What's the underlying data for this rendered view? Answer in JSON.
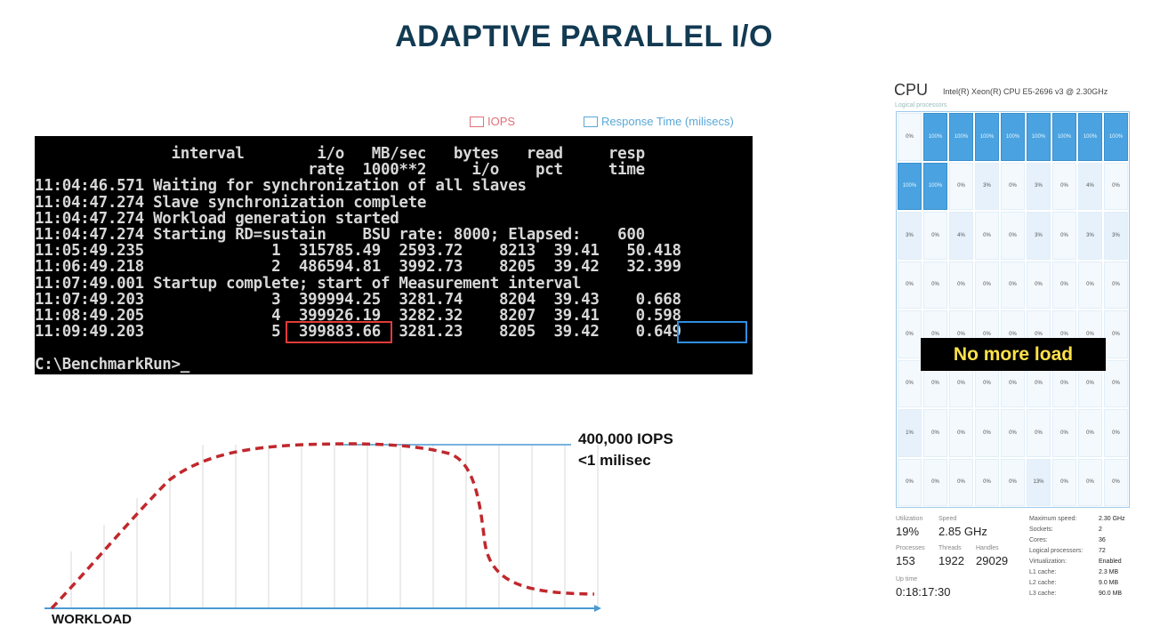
{
  "title": "ADAPTIVE PARALLEL I/O",
  "legend": {
    "iops": "IOPS",
    "response_time": "Response Time (milisecs)"
  },
  "console": {
    "lines": [
      "               interval        i/o   MB/sec   bytes   read     resp",
      "                              rate  1000**2     i/o    pct     time",
      "11:04:46.571 Waiting for synchronization of all slaves",
      "11:04:47.274 Slave synchronization complete",
      "11:04:47.274 Workload generation started",
      "11:04:47.274 Starting RD=sustain    BSU rate: 8000; Elapsed:    600",
      "11:05:49.235              1  315785.49  2593.72    8213  39.41   50.418",
      "11:06:49.218              2  486594.81  3992.73    8205  39.42   32.399",
      "11:07:49.001 Startup complete; start of Measurement interval",
      "11:07:49.203              3  399994.25  3281.74    8204  39.43    0.668",
      "11:08:49.205              4  399926.19  3282.32    8207  39.41    0.598",
      "11:09:49.203              5  399883.66  3281.23    8205  39.42    0.649",
      "",
      "C:\\BenchmarkRun>_"
    ]
  },
  "graph": {
    "annotation_line1": "400,000 IOPS",
    "annotation_line2": "<1 milisec",
    "x_label": "WORKLOAD",
    "colors": {
      "curve": "#c0282d",
      "axis": "#4a9ad2",
      "grid": "#d8d8d8"
    }
  },
  "cpu_panel": {
    "title": "CPU",
    "model": "Intel(R) Xeon(R) CPU E5-2696 v3 @ 2.30GHz",
    "sub": "Logical processors",
    "overlay": "No more load",
    "rows": [
      [
        "0%",
        "100%",
        "100%",
        "100%",
        "100%",
        "100%",
        "100%",
        "100%",
        "100%"
      ],
      [
        "100%",
        "100%",
        "0%",
        "3%",
        "0%",
        "3%",
        "0%",
        "4%",
        "0%"
      ],
      [
        "3%",
        "0%",
        "4%",
        "0%",
        "0%",
        "3%",
        "0%",
        "3%",
        "3%"
      ],
      [
        "0%",
        "0%",
        "0%",
        "0%",
        "0%",
        "0%",
        "0%",
        "0%",
        "0%"
      ],
      [
        "0%",
        "0%",
        "0%",
        "0%",
        "0%",
        "0%",
        "0%",
        "0%",
        "0%"
      ],
      [
        "0%",
        "0%",
        "0%",
        "0%",
        "0%",
        "0%",
        "0%",
        "0%",
        "0%"
      ],
      [
        "1%",
        "0%",
        "0%",
        "0%",
        "0%",
        "0%",
        "0%",
        "0%",
        "0%"
      ],
      [
        "0%",
        "0%",
        "0%",
        "0%",
        "0%",
        "13%",
        "0%",
        "0%",
        "0%"
      ]
    ],
    "hot_cells": [
      [
        0,
        1
      ],
      [
        0,
        2
      ],
      [
        0,
        3
      ],
      [
        0,
        4
      ],
      [
        0,
        5
      ],
      [
        0,
        6
      ],
      [
        0,
        7
      ],
      [
        0,
        8
      ],
      [
        1,
        0
      ],
      [
        1,
        1
      ]
    ],
    "stats": {
      "utilization_label": "Utilization",
      "utilization": "19%",
      "speed_label": "Speed",
      "speed": "2.85 GHz",
      "processes_label": "Processes",
      "processes": "153",
      "threads_label": "Threads",
      "threads": "1922",
      "handles_label": "Handles",
      "handles": "29029",
      "uptime_label": "Up time",
      "uptime": "0:18:17:30"
    },
    "right_stats": [
      [
        "Maximum speed:",
        "2.30 GHz"
      ],
      [
        "Sockets:",
        "2"
      ],
      [
        "Cores:",
        "36"
      ],
      [
        "Logical processors:",
        "72"
      ],
      [
        "Virtualization:",
        "Enabled"
      ],
      [
        "L1 cache:",
        "2.3 MB"
      ],
      [
        "L2 cache:",
        "9.0 MB"
      ],
      [
        "L3 cache:",
        "90.0 MB"
      ]
    ]
  }
}
